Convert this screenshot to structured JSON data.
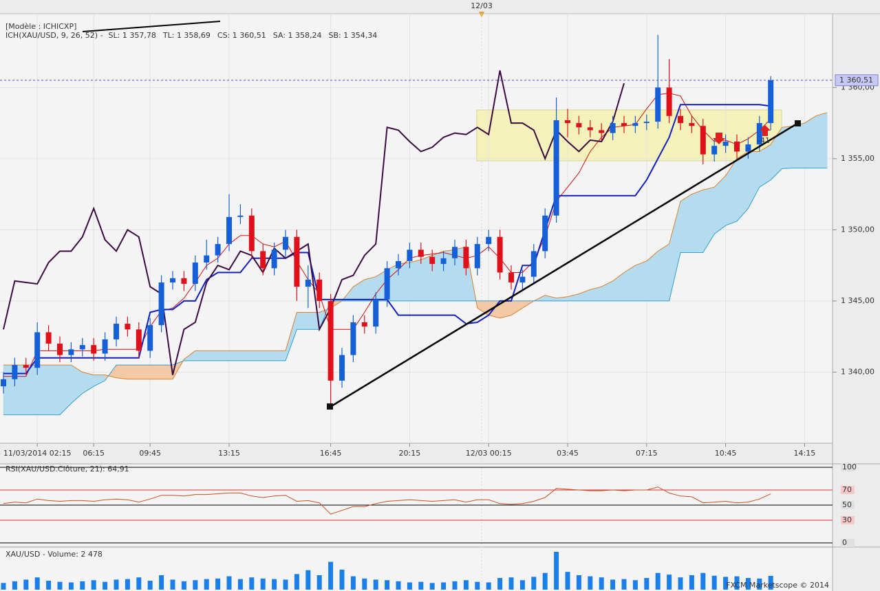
{
  "header": {
    "template": "[Modèle : ICHICXP]",
    "indicator": "ICH(XAU/USD, 9, 26, 52) -",
    "legend": [
      {
        "text": "SL: 1 357,78",
        "color": "#d01010"
      },
      {
        "text": "TL: 1 358,69",
        "color": "#1020c0"
      },
      {
        "text": "CS: 1 360,51",
        "color": "#3a0a40"
      },
      {
        "text": "SA: 1 358,24",
        "color": "#e08030"
      },
      {
        "text": "SB: 1 354,34",
        "color": "#30a0d0"
      }
    ],
    "date_marker": "12/03",
    "annotation": "-41",
    "copyright": "FXCM Marketscope © 2014"
  },
  "chart_data": [
    {
      "type": "candlestick",
      "categories": [
        null,
        null,
        null,
        "11/03/2014 02:15",
        null,
        null,
        null,
        null,
        "06:15",
        null,
        null,
        null,
        null,
        "09:45",
        null,
        null,
        null,
        null,
        null,
        null,
        "13:15",
        null,
        null,
        null,
        null,
        null,
        null,
        null,
        null,
        "16:45",
        null,
        null,
        null,
        null,
        null,
        null,
        "20:15",
        null,
        null,
        null,
        null,
        null,
        null,
        "12/03 00:15",
        null,
        null,
        null,
        null,
        null,
        null,
        "03:45",
        null,
        null,
        null,
        null,
        null,
        null,
        "07:15",
        null,
        null,
        null,
        null,
        null,
        null,
        "10:45",
        null,
        null,
        null,
        null,
        null,
        null,
        "14:15",
        null,
        null,
        null
      ],
      "open": [
        1339.0,
        1339.5,
        1340.5,
        1340.3,
        1342.8,
        1342.0,
        1341.2,
        1341.6,
        1341.9,
        1341.3,
        1342.3,
        1343.4,
        1343.0,
        1341.5,
        1343.3,
        1346.3,
        1346.6,
        1346.2,
        1347.7,
        1348.2,
        1349.0,
        1350.9,
        1351.0,
        1348.5,
        1347.3,
        1348.6,
        1349.5,
        1346.0,
        1346.5,
        1345.0,
        1339.4,
        1341.2,
        1343.5,
        1343.2,
        1345.1,
        1347.3,
        1347.8,
        1348.6,
        1348.1,
        1347.6,
        1348.0,
        1348.8,
        1347.3,
        1349.0,
        1349.5,
        1347.0,
        1346.3,
        1346.7,
        1348.5,
        1351.0,
        1357.7,
        1357.5,
        1357.2,
        1357.0,
        1356.8,
        1357.5,
        1357.3,
        1357.5,
        1357.6,
        1360.0,
        1358.0,
        1357.5,
        1357.3,
        1355.3,
        1355.9,
        1356.2,
        1355.5,
        1356.0,
        1357.5,
        null,
        null,
        null,
        null,
        null,
        null
      ],
      "high": [
        1340.0,
        1341.0,
        1341.0,
        1343.5,
        1343.3,
        1342.5,
        1342.1,
        1342.4,
        1342.4,
        1342.8,
        1343.9,
        1343.9,
        1343.5,
        1343.8,
        1346.8,
        1347.1,
        1347.1,
        1348.2,
        1349.3,
        1349.5,
        1352.5,
        1351.8,
        1351.5,
        1349.0,
        1349.1,
        1350.0,
        1350.0,
        1347.5,
        1347.0,
        1345.5,
        1341.7,
        1344.0,
        1344.0,
        1345.6,
        1347.8,
        1348.3,
        1349.1,
        1349.1,
        1348.6,
        1348.5,
        1349.3,
        1349.3,
        1349.5,
        1350.0,
        1350.0,
        1347.5,
        1347.2,
        1349.0,
        1351.5,
        1359.3,
        1358.5,
        1358.0,
        1357.7,
        1357.5,
        1358.0,
        1358.0,
        1358.0,
        1358.1,
        1363.7,
        1362.0,
        1358.5,
        1358.0,
        1357.8,
        1356.4,
        1356.7,
        1356.7,
        1356.5,
        1358.0,
        1360.8,
        null,
        null,
        null,
        null,
        null,
        null
      ],
      "low": [
        1338.5,
        1339.0,
        1339.8,
        1339.8,
        1341.5,
        1340.7,
        1340.7,
        1341.1,
        1340.8,
        1340.8,
        1341.8,
        1342.5,
        1341.0,
        1341.0,
        1342.8,
        1345.8,
        1345.7,
        1345.7,
        1347.2,
        1347.7,
        1348.5,
        1350.4,
        1348.0,
        1346.8,
        1346.8,
        1348.1,
        1345.0,
        1344.5,
        1344.5,
        1337.5,
        1338.9,
        1340.7,
        1342.7,
        1342.7,
        1344.6,
        1346.8,
        1347.3,
        1347.6,
        1347.1,
        1347.1,
        1347.5,
        1346.8,
        1346.8,
        1348.5,
        1346.5,
        1345.8,
        1345.8,
        1346.2,
        1348.0,
        1350.5,
        1356.5,
        1356.7,
        1356.5,
        1356.3,
        1356.3,
        1356.8,
        1356.8,
        1357.0,
        1357.1,
        1357.5,
        1357.0,
        1356.8,
        1354.6,
        1354.8,
        1355.4,
        1355.0,
        1355.0,
        1355.5,
        1357.0,
        null,
        null,
        null,
        null,
        null,
        null
      ],
      "close": [
        1339.5,
        1340.5,
        1340.3,
        1342.8,
        1342.0,
        1341.2,
        1341.6,
        1341.9,
        1341.3,
        1342.3,
        1343.4,
        1343.0,
        1341.5,
        1343.3,
        1346.3,
        1346.6,
        1346.2,
        1347.7,
        1348.2,
        1349.0,
        1350.9,
        1351.0,
        1348.5,
        1347.3,
        1348.6,
        1349.5,
        1346.0,
        1346.5,
        1345.0,
        1339.4,
        1341.2,
        1343.5,
        1343.2,
        1345.1,
        1347.3,
        1347.8,
        1348.6,
        1348.1,
        1347.6,
        1348.0,
        1348.8,
        1347.3,
        1349.0,
        1349.5,
        1347.0,
        1346.3,
        1346.7,
        1348.5,
        1351.0,
        1357.7,
        1357.5,
        1357.2,
        1357.0,
        1356.8,
        1357.5,
        1357.3,
        1357.5,
        1357.6,
        1360.0,
        1358.0,
        1357.5,
        1357.3,
        1355.3,
        1355.9,
        1356.2,
        1355.5,
        1356.0,
        1357.5,
        1360.51,
        null,
        null,
        null,
        null,
        null,
        null
      ],
      "up_color": "#1560d8",
      "down_color": "#e0101a",
      "spans": [
        {
          "color": "#e08030",
          "values": [
            1340.5,
            1340.5,
            1340.5,
            1340.5,
            1340.5,
            1340.5,
            1340.5,
            1340.0,
            1339.8,
            1339.8,
            1339.6,
            1339.5,
            1339.5,
            1339.5,
            1339.5,
            1339.5,
            1340.9,
            1341.5,
            1341.5,
            1341.5,
            1341.5,
            1341.5,
            1341.5,
            1341.5,
            1341.5,
            1341.5,
            1344.2,
            1344.2,
            1344.2,
            1344.5,
            1345.0,
            1346.0,
            1346.5,
            1346.7,
            1347.2,
            1347.6,
            1347.7,
            1347.9,
            1348.2,
            1348.5,
            1348.6,
            1348.8,
            1344.5,
            1344.0,
            1343.8,
            1344.0,
            1344.5,
            1345.0,
            1345.4,
            1345.2,
            1345.3,
            1345.5,
            1345.8,
            1346.0,
            1346.4,
            1347.0,
            1347.5,
            1347.8,
            1348.5,
            1349.0,
            1352.0,
            1352.5,
            1352.8,
            1353.0,
            1353.8,
            1355.0,
            1355.5,
            1355.5,
            1356.0,
            1357.2,
            1357.3,
            1357.5,
            1358.0,
            1358.24,
            null
          ]
        },
        {
          "color": "#30a0d0",
          "values": [
            1337.0,
            1337.0,
            1337.0,
            1337.0,
            1337.0,
            1337.0,
            1337.8,
            1338.5,
            1339.0,
            1339.4,
            1340.5,
            1340.5,
            1340.5,
            1340.5,
            1340.5,
            1340.5,
            1340.8,
            1340.8,
            1340.8,
            1340.8,
            1340.8,
            1340.8,
            1340.8,
            1340.8,
            1340.8,
            1340.8,
            1343.0,
            1343.0,
            1343.0,
            1345.0,
            1345.0,
            1345.0,
            1345.0,
            1345.0,
            1345.0,
            1345.0,
            1345.0,
            1345.0,
            1345.0,
            1345.0,
            1345.0,
            1345.0,
            1345.0,
            1345.0,
            1345.0,
            1345.0,
            1345.0,
            1345.0,
            1345.0,
            1345.0,
            1345.0,
            1345.0,
            1345.0,
            1345.0,
            1345.0,
            1345.0,
            1345.0,
            1345.0,
            1345.0,
            1345.0,
            1348.4,
            1348.4,
            1348.4,
            1349.7,
            1350.3,
            1350.6,
            1351.5,
            1353.0,
            1353.5,
            1354.3,
            1354.34,
            1354.34,
            1354.34,
            1354.34,
            null
          ]
        }
      ],
      "cloud_colors": [
        "#b4dcee",
        "#f4caa6"
      ],
      "lines": [
        {
          "color": "#d01010",
          "values": [
            1339.7,
            1339.7,
            1339.7,
            1341.5,
            1341.5,
            1341.5,
            1341.5,
            1341.5,
            1341.5,
            1341.6,
            1341.6,
            1341.6,
            1341.6,
            1343.2,
            1344.3,
            1344.5,
            1345.2,
            1346.3,
            1347.5,
            1348.0,
            1349.0,
            1349.6,
            1349.6,
            1349.0,
            1348.8,
            1349.2,
            1347.8,
            1346.5,
            1345.5,
            1343.0,
            1343.0,
            1343.0,
            1344.2,
            1345.5,
            1346.5,
            1347.2,
            1348.0,
            1348.2,
            1348.3,
            1348.4,
            1348.2,
            1348.0,
            1348.2,
            1348.8,
            1348.0,
            1347.0,
            1347.0,
            1347.8,
            1349.5,
            1352.0,
            1353.0,
            1354.0,
            1355.5,
            1356.5,
            1357.2,
            1357.3,
            1357.4,
            1358.5,
            1359.5,
            1359.6,
            1359.4,
            1358.0,
            1357.0,
            1356.2,
            1356.3,
            1356.0,
            1356.4,
            1357.0,
            1357.78,
            null,
            null,
            null,
            null,
            null,
            null
          ]
        },
        {
          "color": "#1020c0",
          "values": [
            1339.9,
            1339.9,
            1339.9,
            1341.0,
            1341.0,
            1341.0,
            1341.0,
            1341.0,
            1341.0,
            1341.0,
            1341.0,
            1341.0,
            1341.0,
            1344.2,
            1344.4,
            1344.4,
            1345.0,
            1345.0,
            1346.5,
            1347.0,
            1347.0,
            1347.0,
            1348.0,
            1348.0,
            1348.0,
            1348.0,
            1348.4,
            1348.4,
            1345.1,
            1345.1,
            1345.1,
            1345.1,
            1345.1,
            1345.1,
            1345.1,
            1344.0,
            1344.0,
            1344.0,
            1344.0,
            1344.0,
            1344.0,
            1343.4,
            1343.5,
            1344.0,
            1345.0,
            1345.0,
            1347.5,
            1347.5,
            1350.0,
            1352.4,
            1352.4,
            1352.4,
            1352.4,
            1352.4,
            1352.4,
            1352.4,
            1352.4,
            1353.5,
            1355.0,
            1356.5,
            1358.8,
            1358.8,
            1358.8,
            1358.8,
            1358.8,
            1358.8,
            1358.8,
            1358.8,
            1358.69,
            null,
            null,
            null,
            null,
            null,
            null
          ]
        },
        {
          "color": "#3a0a40",
          "values": [
            1343.0,
            1346.4,
            1346.3,
            1346.2,
            1347.7,
            1348.5,
            1348.5,
            1349.5,
            1351.5,
            1349.3,
            1348.5,
            1350.0,
            1349.5,
            1346.0,
            1345.5,
            1339.8,
            1343.0,
            1343.5,
            1346.3,
            1347.5,
            1347.2,
            1348.5,
            1348.2,
            1347.0,
            1348.7,
            1348.0,
            1348.5,
            1349.0,
            1343.0,
            1344.5,
            1346.5,
            1346.8,
            1348.2,
            1349.0,
            1357.2,
            1357.0,
            1356.2,
            1355.5,
            1355.8,
            1356.5,
            1356.8,
            1356.7,
            1357.2,
            1356.7,
            1361.2,
            1357.5,
            1357.5,
            1357.0,
            1355.0,
            1357.0,
            1356.2,
            1355.5,
            1356.3,
            1356.2,
            1357.6,
            1360.3,
            null,
            null,
            null,
            null,
            null,
            null,
            null,
            null,
            null,
            null,
            null,
            null,
            null,
            null,
            null,
            null,
            null,
            null,
            null
          ]
        }
      ],
      "last_price": {
        "value": 1360.51,
        "label": "1 360,51"
      },
      "ylim": [
        1335,
        1364.7
      ],
      "yticks": [
        {
          "value": 1340,
          "label": "1 340,00"
        },
        {
          "value": 1345,
          "label": "1 345,00"
        },
        {
          "value": 1350,
          "label": "1 350,00"
        },
        {
          "value": 1355,
          "label": "1 355,00"
        },
        {
          "value": 1360,
          "label": "1 360,00"
        }
      ],
      "grid": true
    },
    {
      "type": "line",
      "title": "RSI(XAU/USD.Clôture, 21): 64,91",
      "color": "#c8501e",
      "values": [
        52,
        54,
        53,
        58,
        56,
        55,
        56,
        56,
        55,
        57,
        58,
        57,
        54,
        58,
        63,
        63,
        62,
        64,
        64,
        65,
        66,
        66,
        62,
        60,
        62,
        63,
        55,
        56,
        53,
        38,
        43,
        48,
        48,
        52,
        55,
        56,
        57,
        56,
        55,
        56,
        57,
        54,
        57,
        57,
        52,
        51,
        52,
        55,
        60,
        72,
        71,
        70,
        69,
        69,
        70,
        69,
        70,
        70,
        74,
        66,
        62,
        61,
        53,
        54,
        55,
        53,
        54,
        58,
        64.91,
        null,
        null,
        null,
        null,
        null,
        null
      ],
      "ylim": [
        0,
        100
      ],
      "yticks": [
        0,
        30,
        50,
        70,
        100
      ],
      "ytick_colors": [
        "#000000",
        "#e03030",
        "#000000",
        "#e03030",
        "#000000"
      ]
    },
    {
      "type": "bar",
      "title": "XAU/USD - Volume: 2 478",
      "color": "#1a7fe8",
      "values": [
        1200,
        1500,
        1800,
        2200,
        1600,
        1400,
        1300,
        1500,
        1700,
        1400,
        1800,
        1900,
        2200,
        1600,
        2600,
        1800,
        1500,
        1700,
        1900,
        2000,
        2400,
        1900,
        2200,
        2000,
        1900,
        1800,
        2800,
        3500,
        2600,
        5000,
        3600,
        2400,
        2000,
        1800,
        1700,
        1500,
        1300,
        1400,
        1200,
        1300,
        1500,
        1700,
        1400,
        1300,
        2100,
        2200,
        1700,
        2300,
        3000,
        6800,
        3200,
        2600,
        2400,
        2200,
        1800,
        1900,
        1700,
        2100,
        3000,
        2700,
        2200,
        2600,
        3000,
        2500,
        2300,
        2400,
        2100,
        2000,
        2478,
        null,
        null,
        null,
        null,
        null,
        null
      ]
    }
  ]
}
